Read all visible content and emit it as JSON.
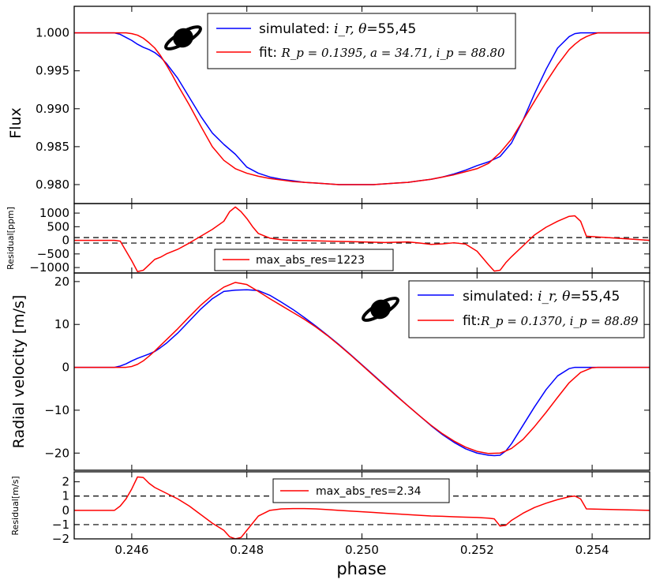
{
  "chart_data": [
    {
      "type": "line",
      "panel": "flux",
      "xlabel": "",
      "ylabel": "Flux",
      "xlim": [
        0.245,
        0.255
      ],
      "ylim": [
        0.9775,
        1.0035
      ],
      "xticks": [
        0.246,
        0.248,
        0.25,
        0.252,
        0.254
      ],
      "yticks": [
        0.98,
        0.985,
        0.99,
        0.995,
        1.0
      ],
      "ytick_labels": [
        "0.980",
        "0.985",
        "0.990",
        "0.995",
        "1.000"
      ],
      "legend_position": "top-center",
      "series": [
        {
          "name": "simulated",
          "legend_prefix": "simulated: ",
          "legend_math": "i_r, θ",
          "legend_suffix": "=55,45",
          "color": "#0000ff",
          "x": [
            0.245,
            0.2457,
            0.2458,
            0.2459,
            0.246,
            0.2461,
            0.2462,
            0.2463,
            0.2464,
            0.2465,
            0.2466,
            0.2468,
            0.247,
            0.2472,
            0.2474,
            0.2476,
            0.2478,
            0.248,
            0.2482,
            0.2484,
            0.2486,
            0.2488,
            0.249,
            0.2492,
            0.2494,
            0.2496,
            0.2498,
            0.25,
            0.2502,
            0.2504,
            0.2506,
            0.2508,
            0.251,
            0.2512,
            0.2514,
            0.2516,
            0.2518,
            0.252,
            0.2522,
            0.2524,
            0.2526,
            0.2528,
            0.253,
            0.2532,
            0.2534,
            0.2536,
            0.2537,
            0.2538,
            0.2539,
            0.255
          ],
          "y": [
            1.0,
            1.0,
            0.9998,
            0.9994,
            0.999,
            0.9985,
            0.9981,
            0.9978,
            0.9974,
            0.9968,
            0.996,
            0.994,
            0.9915,
            0.989,
            0.9868,
            0.9853,
            0.984,
            0.9823,
            0.9815,
            0.981,
            0.9807,
            0.9805,
            0.9803,
            0.9802,
            0.9801,
            0.98,
            0.98,
            0.98,
            0.98,
            0.9801,
            0.9802,
            0.9803,
            0.9805,
            0.9807,
            0.981,
            0.9814,
            0.9819,
            0.9825,
            0.983,
            0.9837,
            0.9855,
            0.9885,
            0.992,
            0.9952,
            0.998,
            0.9995,
            0.9999,
            1.0,
            1.0,
            1.0
          ]
        },
        {
          "name": "fit",
          "legend_prefix": "fit: ",
          "legend_math": "R_p = 0.1395, a = 34.71, i_p = 88.80",
          "legend_suffix": "",
          "color": "#ff0000",
          "x": [
            0.245,
            0.2459,
            0.246,
            0.2461,
            0.2462,
            0.2463,
            0.2464,
            0.2465,
            0.2466,
            0.2467,
            0.2468,
            0.247,
            0.2472,
            0.2474,
            0.2476,
            0.2478,
            0.248,
            0.2482,
            0.2484,
            0.2486,
            0.2488,
            0.249,
            0.2492,
            0.2494,
            0.2496,
            0.2498,
            0.25,
            0.2502,
            0.2504,
            0.2506,
            0.2508,
            0.251,
            0.2512,
            0.2514,
            0.2516,
            0.2518,
            0.252,
            0.2522,
            0.2524,
            0.2526,
            0.2528,
            0.253,
            0.2532,
            0.2534,
            0.2536,
            0.2537,
            0.2538,
            0.2539,
            0.254,
            0.2541,
            0.255
          ],
          "y": [
            1.0,
            1.0,
            0.9999,
            0.9997,
            0.9993,
            0.9987,
            0.998,
            0.997,
            0.9958,
            0.9945,
            0.9931,
            0.9905,
            0.9877,
            0.985,
            0.9832,
            0.9821,
            0.9815,
            0.9811,
            0.9808,
            0.9806,
            0.9804,
            0.9803,
            0.9802,
            0.9801,
            0.98,
            0.98,
            0.98,
            0.98,
            0.9801,
            0.9802,
            0.9803,
            0.9805,
            0.9807,
            0.981,
            0.9813,
            0.9817,
            0.9821,
            0.9828,
            0.9842,
            0.986,
            0.9885,
            0.991,
            0.9935,
            0.9958,
            0.9978,
            0.9985,
            0.9991,
            0.9995,
            0.9998,
            1.0,
            1.0
          ]
        }
      ]
    },
    {
      "type": "line",
      "panel": "flux-residual",
      "ylabel": "Residual[ppm]",
      "xlim": [
        0.245,
        0.255
      ],
      "ylim": [
        -1200,
        1350
      ],
      "yticks": [
        -1000,
        -500,
        0,
        500,
        1000
      ],
      "ytick_labels": [
        "−1000",
        "−500",
        "0",
        "500",
        "1000"
      ],
      "reference_lines": [
        100,
        -100
      ],
      "legend_position": "lower-center",
      "series": [
        {
          "name": "max_abs_res=1223",
          "color": "#ff0000",
          "x": [
            0.245,
            0.2457,
            0.2458,
            0.246,
            0.2461,
            0.2462,
            0.2463,
            0.2464,
            0.2465,
            0.2466,
            0.2468,
            0.247,
            0.2472,
            0.2474,
            0.2476,
            0.2477,
            0.2478,
            0.2479,
            0.248,
            0.2481,
            0.2482,
            0.2484,
            0.2486,
            0.2488,
            0.249,
            0.2492,
            0.2494,
            0.2496,
            0.2498,
            0.25,
            0.2502,
            0.2504,
            0.2506,
            0.2508,
            0.251,
            0.2512,
            0.2514,
            0.2516,
            0.2518,
            0.252,
            0.2522,
            0.2523,
            0.2524,
            0.2525,
            0.2526,
            0.2528,
            0.253,
            0.2532,
            0.2534,
            0.2536,
            0.2537,
            0.2538,
            0.2539,
            0.255
          ],
          "y": [
            0,
            0,
            -30,
            -750,
            -1150,
            -1100,
            -900,
            -700,
            -620,
            -500,
            -330,
            -100,
            150,
            400,
            700,
            1050,
            1223,
            1050,
            800,
            500,
            250,
            80,
            20,
            0,
            -10,
            -20,
            -30,
            -40,
            -50,
            -60,
            -70,
            -80,
            -70,
            -60,
            -100,
            -150,
            -130,
            -90,
            -140,
            -400,
            -900,
            -1130,
            -1100,
            -820,
            -600,
            -200,
            200,
            480,
            700,
            880,
            900,
            700,
            150,
            0
          ]
        }
      ]
    },
    {
      "type": "line",
      "panel": "rv",
      "ylabel": "Radial velocity [m/s]",
      "xlim": [
        0.245,
        0.255
      ],
      "ylim": [
        -24,
        22
      ],
      "yticks": [
        -20,
        -10,
        0,
        10,
        20
      ],
      "ytick_labels": [
        "−20",
        "−10",
        "0",
        "10",
        "20"
      ],
      "legend_position": "top-right",
      "series": [
        {
          "name": "simulated",
          "legend_prefix": "simulated: ",
          "legend_math": "i_r, θ",
          "legend_suffix": "=55,45",
          "color": "#0000ff",
          "x": [
            0.245,
            0.2457,
            0.2458,
            0.2459,
            0.246,
            0.2461,
            0.2462,
            0.2463,
            0.2464,
            0.2465,
            0.2466,
            0.2468,
            0.247,
            0.2472,
            0.2474,
            0.2476,
            0.2478,
            0.248,
            0.2482,
            0.2484,
            0.2486,
            0.2488,
            0.249,
            0.2492,
            0.2494,
            0.2496,
            0.2498,
            0.25,
            0.2502,
            0.2504,
            0.2506,
            0.2508,
            0.251,
            0.2512,
            0.2514,
            0.2516,
            0.2518,
            0.252,
            0.2522,
            0.2523,
            0.2524,
            0.2525,
            0.2526,
            0.2528,
            0.253,
            0.2532,
            0.2534,
            0.2536,
            0.2537,
            0.2538,
            0.2539,
            0.255
          ],
          "y": [
            0,
            0,
            0.3,
            0.8,
            1.5,
            2.1,
            2.6,
            3.1,
            3.7,
            4.6,
            5.6,
            8.0,
            10.8,
            13.6,
            16.0,
            17.7,
            18.0,
            18.1,
            17.9,
            16.8,
            15.2,
            13.5,
            11.6,
            9.6,
            7.5,
            5.3,
            3.0,
            0.6,
            -1.8,
            -4.2,
            -6.6,
            -9.0,
            -11.3,
            -13.6,
            -15.7,
            -17.5,
            -19.0,
            -20.0,
            -20.5,
            -20.6,
            -20.5,
            -19.5,
            -17.8,
            -13.5,
            -9.2,
            -5.2,
            -2.0,
            -0.3,
            0,
            0,
            0,
            0
          ]
        },
        {
          "name": "fit",
          "legend_prefix": "fit:",
          "legend_math": "R_p = 0.1370, i_p = 88.89",
          "legend_suffix": "",
          "color": "#ff0000",
          "x": [
            0.245,
            0.2459,
            0.246,
            0.2461,
            0.2462,
            0.2463,
            0.2464,
            0.2465,
            0.2466,
            0.2468,
            0.247,
            0.2472,
            0.2474,
            0.2476,
            0.2478,
            0.248,
            0.2482,
            0.2484,
            0.2486,
            0.2488,
            0.249,
            0.2492,
            0.2494,
            0.2496,
            0.2498,
            0.25,
            0.2502,
            0.2504,
            0.2506,
            0.2508,
            0.251,
            0.2512,
            0.2514,
            0.2516,
            0.2518,
            0.252,
            0.2522,
            0.2524,
            0.2525,
            0.2526,
            0.2528,
            0.253,
            0.2532,
            0.2534,
            0.2536,
            0.2538,
            0.254,
            0.2541,
            0.255
          ],
          "y": [
            0,
            0,
            0.2,
            0.7,
            1.5,
            2.6,
            3.8,
            5.1,
            6.4,
            9.0,
            11.8,
            14.5,
            16.8,
            18.7,
            19.8,
            19.3,
            17.7,
            16.0,
            14.4,
            12.8,
            11.2,
            9.4,
            7.4,
            5.2,
            2.9,
            0.5,
            -1.9,
            -4.3,
            -6.7,
            -9.0,
            -11.3,
            -13.5,
            -15.5,
            -17.2,
            -18.6,
            -19.6,
            -20.1,
            -20.0,
            -19.5,
            -18.9,
            -16.8,
            -13.8,
            -10.5,
            -7.0,
            -3.6,
            -1.2,
            -0.1,
            0,
            0
          ]
        }
      ]
    },
    {
      "type": "line",
      "panel": "rv-residual",
      "ylabel": "Residual[m/s]",
      "xlabel": "phase",
      "xlim": [
        0.245,
        0.255
      ],
      "ylim": [
        -2,
        2.7
      ],
      "yticks": [
        -2,
        -1,
        0,
        1,
        2
      ],
      "ytick_labels": [
        "−2",
        "−1",
        "0",
        "1",
        "2"
      ],
      "xticks": [
        0.246,
        0.248,
        0.25,
        0.252,
        0.254
      ],
      "xtick_labels": [
        "0.246",
        "0.248",
        "0.250",
        "0.252",
        "0.254"
      ],
      "reference_lines": [
        1,
        -1
      ],
      "legend_position": "top-center",
      "series": [
        {
          "name": "max_abs_res=2.34",
          "color": "#ff0000",
          "x": [
            0.245,
            0.2457,
            0.2458,
            0.2459,
            0.246,
            0.2461,
            0.2462,
            0.2463,
            0.2464,
            0.2465,
            0.2466,
            0.2467,
            0.2468,
            0.247,
            0.2472,
            0.2474,
            0.2476,
            0.2477,
            0.2478,
            0.2479,
            0.248,
            0.2481,
            0.2482,
            0.2484,
            0.2486,
            0.2488,
            0.249,
            0.2492,
            0.2494,
            0.2496,
            0.2498,
            0.25,
            0.2502,
            0.2504,
            0.2506,
            0.2508,
            0.251,
            0.2512,
            0.2514,
            0.2516,
            0.2518,
            0.252,
            0.2522,
            0.2523,
            0.2524,
            0.2525,
            0.2526,
            0.2528,
            0.253,
            0.2532,
            0.2534,
            0.2536,
            0.2537,
            0.2538,
            0.2539,
            0.255
          ],
          "y": [
            0,
            0,
            0.3,
            0.8,
            1.5,
            2.34,
            2.3,
            1.9,
            1.6,
            1.4,
            1.2,
            1.0,
            0.8,
            0.3,
            -0.3,
            -0.9,
            -1.4,
            -1.85,
            -2.0,
            -1.9,
            -1.4,
            -0.9,
            -0.4,
            0.0,
            0.1,
            0.12,
            0.12,
            0.1,
            0.05,
            0.0,
            -0.05,
            -0.1,
            -0.15,
            -0.2,
            -0.25,
            -0.3,
            -0.35,
            -0.4,
            -0.42,
            -0.45,
            -0.48,
            -0.5,
            -0.55,
            -0.6,
            -1.1,
            -1.05,
            -0.7,
            -0.2,
            0.2,
            0.5,
            0.75,
            0.95,
            1.0,
            0.8,
            0.1,
            0
          ]
        }
      ]
    }
  ]
}
